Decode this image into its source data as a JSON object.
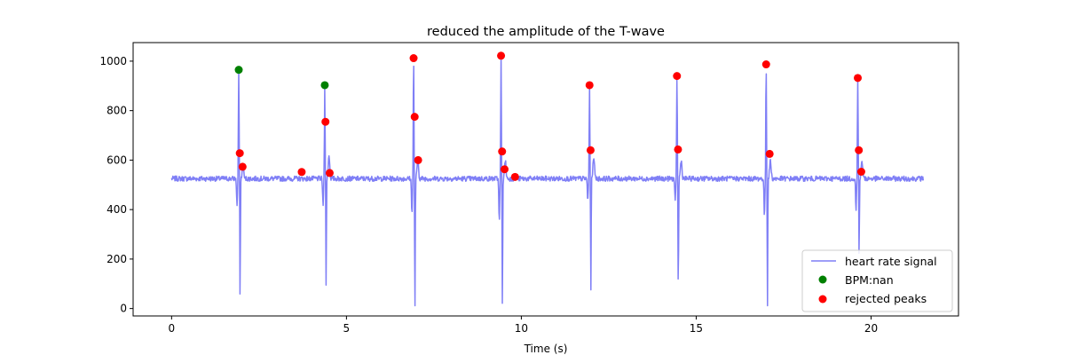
{
  "chart_data": {
    "type": "line",
    "title": "reduced the amplitude of the T-wave",
    "xlabel": "Time (s)",
    "ylabel": "",
    "xlim": [
      -1.1,
      22.5
    ],
    "ylim": [
      -30,
      1075
    ],
    "xticks": [
      0,
      5,
      10,
      15,
      20
    ],
    "yticks": [
      0,
      200,
      400,
      600,
      800,
      1000
    ],
    "legend_position": "lower-right",
    "grid": false,
    "series": [
      {
        "name": "heart rate signal",
        "kind": "line",
        "color": "#7f7ff6",
        "baseline": 525,
        "noise": 13,
        "x_start": 0,
        "x_end": 21.5,
        "beats": [
          {
            "t": 1.92,
            "q": 418,
            "r": 965,
            "s": 35,
            "t_peak": 575
          },
          {
            "t": 4.38,
            "q": 415,
            "r": 905,
            "s": 75,
            "t_peak": 620
          },
          {
            "t": 6.92,
            "q": 388,
            "r": 1012,
            "s": 2,
            "t_peak": 600
          },
          {
            "t": 9.42,
            "q": 352,
            "r": 1020,
            "s": 2,
            "t_peak": 600
          },
          {
            "t": 11.95,
            "q": 435,
            "r": 905,
            "s": 65,
            "t_peak": 615
          },
          {
            "t": 14.45,
            "q": 428,
            "r": 940,
            "s": 65,
            "t_peak": 600
          },
          {
            "t": 17.0,
            "q": 370,
            "r": 985,
            "s": 5,
            "t_peak": 600
          },
          {
            "t": 19.62,
            "q": 400,
            "r": 935,
            "s": 220,
            "t_peak": 595
          }
        ]
      },
      {
        "name": "BPM:nan",
        "kind": "scatter",
        "color": "#008000",
        "points": [
          [
            1.92,
            965
          ],
          [
            4.38,
            903
          ]
        ]
      },
      {
        "name": "rejected peaks",
        "kind": "scatter",
        "color": "#ff0000",
        "points": [
          [
            1.95,
            628
          ],
          [
            2.03,
            573
          ],
          [
            3.72,
            552
          ],
          [
            4.4,
            755
          ],
          [
            4.52,
            548
          ],
          [
            6.92,
            1012
          ],
          [
            6.95,
            775
          ],
          [
            7.05,
            600
          ],
          [
            9.42,
            1022
          ],
          [
            9.45,
            635
          ],
          [
            9.52,
            563
          ],
          [
            9.82,
            532
          ],
          [
            11.95,
            903
          ],
          [
            11.98,
            640
          ],
          [
            14.45,
            940
          ],
          [
            14.48,
            643
          ],
          [
            17.0,
            987
          ],
          [
            17.1,
            625
          ],
          [
            19.62,
            932
          ],
          [
            19.65,
            640
          ],
          [
            19.72,
            553
          ]
        ]
      }
    ]
  }
}
